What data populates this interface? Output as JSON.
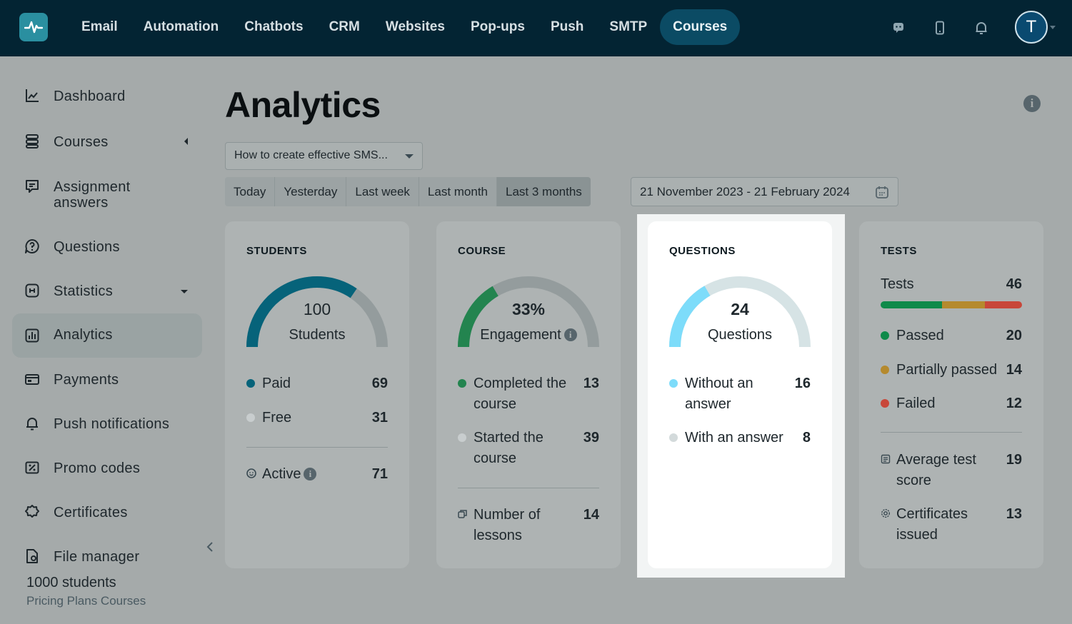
{
  "nav": {
    "items": [
      "Email",
      "Automation",
      "Chatbots",
      "CRM",
      "Websites",
      "Pop-ups",
      "Push",
      "SMTP",
      "Courses"
    ],
    "active": "Courses",
    "avatar_initial": "T"
  },
  "sidebar": {
    "dashboard": "Dashboard",
    "courses": "Courses",
    "assignment_line1": "Assignment",
    "assignment_line2": "answers",
    "questions": "Questions",
    "statistics": "Statistics",
    "analytics": "Analytics",
    "payments": "Payments",
    "push": "Push notifications",
    "promo": "Promo codes",
    "certificates": "Certificates",
    "files": "File manager",
    "plan_name": "1000 students",
    "plan_sub": "Pricing Plans Courses"
  },
  "main": {
    "title": "Analytics",
    "course_select": "How to create effective SMS...",
    "periods": [
      "Today",
      "Yesterday",
      "Last week",
      "Last month",
      "Last 3 months"
    ],
    "active_period": "Last 3 months",
    "date_range": "21 November 2023 - 21 February 2024"
  },
  "cards": {
    "students": {
      "title": "STUDENTS",
      "gauge_value": "100",
      "gauge_label": "Students",
      "gauge_fraction": 0.69,
      "paid_label": "Paid",
      "paid": "69",
      "free_label": "Free",
      "free": "31",
      "active_label": "Active",
      "active": "71"
    },
    "course": {
      "title": "COURSE",
      "gauge_value": "33%",
      "gauge_label": "Engagement",
      "gauge_fraction": 0.33,
      "completed_l1": "Completed the",
      "completed_l2": "course",
      "completed": "13",
      "started_l1": "Started the",
      "started_l2": "course",
      "started": "39",
      "lessons_l1": "Number of",
      "lessons_l2": "lessons",
      "lessons": "14"
    },
    "questions": {
      "title": "QUESTIONS",
      "gauge_value": "24",
      "gauge_label": "Questions",
      "gauge_fraction": 0.333,
      "without_l1": "Without an",
      "without_l2": "answer",
      "without": "16",
      "with_label": "With an answer",
      "with": "8"
    },
    "tests": {
      "title": "TESTS",
      "tests_label": "Tests",
      "tests": "46",
      "passed_label": "Passed",
      "passed": "20",
      "partial_label": "Partially passed",
      "partial": "14",
      "failed_label": "Failed",
      "failed": "12",
      "avg_l1": "Average test",
      "avg_l2": "score",
      "avg": "19",
      "certs_l1": "Certificates",
      "certs_l2": "issued",
      "certs": "13"
    }
  },
  "colors": {
    "topbar": "#032433",
    "students_arc": "#06637a",
    "engagement_arc": "#23844f",
    "questions_arc": "#7ddcfa",
    "passed": "#0f8a4a",
    "partial": "#b58a2e",
    "failed": "#c8473a"
  }
}
